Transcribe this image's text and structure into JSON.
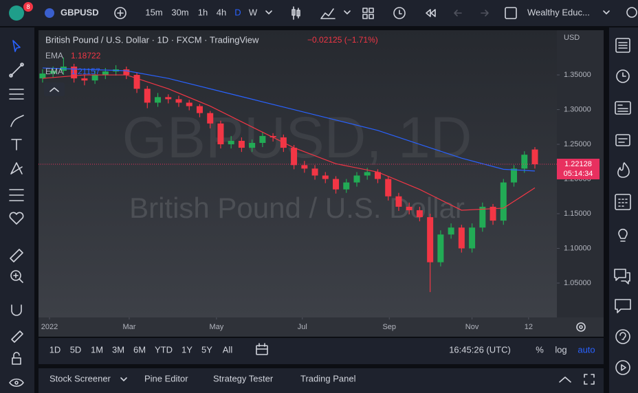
{
  "toolbar": {
    "symbol": "GBPUSD",
    "badge": "8",
    "intervals": [
      "15m",
      "30m",
      "1h",
      "4h",
      "D",
      "W"
    ],
    "active_interval": 4,
    "layout_name": "Wealthy Educ..."
  },
  "chart_data": {
    "type": "candlestick",
    "title": "British Pound / U.S. Dollar · 1D · FXCM · TradingView",
    "change": "−0.02125 (−1.71%)",
    "watermark": "GBPUSD, 1D",
    "watermark_subtitle": "British Pound / U.S. Dollar",
    "currency": "USD",
    "up_color": "#22ab55",
    "down_color": "#f23645",
    "x": [
      0,
      1,
      2,
      3,
      4,
      5,
      6,
      7,
      8,
      9,
      10,
      11,
      12,
      13,
      14,
      15,
      16,
      17,
      18,
      19,
      20,
      21,
      22,
      23,
      24,
      25,
      26,
      27,
      28,
      29,
      30,
      31,
      32,
      33,
      34,
      35,
      36,
      37,
      38,
      39,
      40,
      41,
      42,
      43,
      44,
      45,
      46,
      47
    ],
    "open": [
      1.345,
      1.352,
      1.356,
      1.362,
      1.345,
      1.342,
      1.35,
      1.355,
      1.358,
      1.35,
      1.33,
      1.31,
      1.318,
      1.315,
      1.31,
      1.305,
      1.295,
      1.28,
      1.25,
      1.255,
      1.245,
      1.252,
      1.262,
      1.26,
      1.245,
      1.22,
      1.215,
      1.205,
      1.2,
      1.185,
      1.195,
      1.205,
      1.21,
      1.2,
      1.175,
      1.16,
      1.155,
      1.145,
      1.08,
      1.12,
      1.13,
      1.1,
      1.13,
      1.16,
      1.14,
      1.195,
      1.215,
      1.24253
    ],
    "high": [
      1.358,
      1.362,
      1.375,
      1.366,
      1.35,
      1.356,
      1.36,
      1.364,
      1.362,
      1.354,
      1.334,
      1.324,
      1.322,
      1.32,
      1.314,
      1.308,
      1.298,
      1.284,
      1.262,
      1.26,
      1.257,
      1.268,
      1.266,
      1.264,
      1.249,
      1.226,
      1.22,
      1.21,
      1.204,
      1.2,
      1.21,
      1.216,
      1.214,
      1.204,
      1.18,
      1.166,
      1.16,
      1.15,
      1.126,
      1.136,
      1.134,
      1.136,
      1.166,
      1.164,
      1.2,
      1.22,
      1.24,
      1.246
    ],
    "low": [
      1.339,
      1.346,
      1.35,
      1.339,
      1.335,
      1.337,
      1.344,
      1.349,
      1.344,
      1.324,
      1.302,
      1.304,
      1.309,
      1.304,
      1.299,
      1.289,
      1.273,
      1.244,
      1.244,
      1.239,
      1.239,
      1.246,
      1.254,
      1.239,
      1.214,
      1.209,
      1.199,
      1.194,
      1.179,
      1.18,
      1.189,
      1.199,
      1.194,
      1.169,
      1.154,
      1.149,
      1.139,
      1.037,
      1.074,
      1.114,
      1.094,
      1.094,
      1.124,
      1.134,
      1.134,
      1.189,
      1.209,
      1.215
    ],
    "close": [
      1.352,
      1.356,
      1.362,
      1.345,
      1.342,
      1.35,
      1.355,
      1.358,
      1.35,
      1.33,
      1.31,
      1.318,
      1.315,
      1.31,
      1.305,
      1.295,
      1.28,
      1.25,
      1.255,
      1.245,
      1.252,
      1.262,
      1.26,
      1.245,
      1.22,
      1.215,
      1.205,
      1.2,
      1.185,
      1.195,
      1.205,
      1.21,
      1.2,
      1.175,
      1.16,
      1.155,
      1.145,
      1.08,
      1.12,
      1.13,
      1.1,
      1.13,
      1.16,
      1.14,
      1.195,
      1.215,
      1.235,
      1.22128
    ],
    "lines": [
      {
        "name": "EMA",
        "value": 1.18722,
        "color": "#f23645",
        "x": [
          0,
          4,
          8,
          12,
          16,
          20,
          24,
          28,
          32,
          36,
          40,
          44,
          47
        ],
        "values": [
          1.345,
          1.35,
          1.35,
          1.33,
          1.305,
          1.275,
          1.245,
          1.222,
          1.21,
          1.185,
          1.155,
          1.158,
          1.18722
        ]
      },
      {
        "name": "EMA",
        "value": 1.21157,
        "color": "#2962ff",
        "x": [
          0,
          8,
          12,
          16,
          20,
          24,
          28,
          32,
          36,
          40,
          44,
          47
        ],
        "values": [
          1.36,
          1.356,
          1.345,
          1.33,
          1.315,
          1.3,
          1.285,
          1.27,
          1.25,
          1.23,
          1.214,
          1.21157
        ]
      }
    ],
    "last_price": 1.22128,
    "countdown": "05:14:34",
    "last_price_color": "#e8305f",
    "xlim": [
      -0.39,
      49.1
    ],
    "ylim": [
      1.0005,
      1.4144
    ],
    "xticks": [
      {
        "value": 0.66,
        "label": "2022"
      },
      {
        "value": 8.27,
        "label": "Mar"
      },
      {
        "value": 16.6,
        "label": "May"
      },
      {
        "value": 24.8,
        "label": "Jul"
      },
      {
        "value": 33.1,
        "label": "Sep"
      },
      {
        "value": 41.0,
        "label": "Nov"
      },
      {
        "value": 46.4,
        "label": "12"
      }
    ],
    "yticks": [
      {
        "value": 1.05,
        "label": "1.05000"
      },
      {
        "value": 1.1,
        "label": "1.10000"
      },
      {
        "value": 1.15,
        "label": "1.15000"
      },
      {
        "value": 1.2,
        "label": "1.20000"
      },
      {
        "value": 1.25,
        "label": "1.25000"
      },
      {
        "value": 1.3,
        "label": "1.30000"
      },
      {
        "value": 1.35,
        "label": "1.35000"
      }
    ]
  },
  "range_bar": {
    "ranges": [
      "1D",
      "5D",
      "1M",
      "3M",
      "6M",
      "YTD",
      "1Y",
      "5Y",
      "All"
    ],
    "clock": "16:45:26 (UTC)",
    "percent": "%",
    "log": "log",
    "auto": "auto"
  },
  "bottom_panel": {
    "tabs": [
      "Stock Screener",
      "Pine Editor",
      "Strategy Tester",
      "Trading Panel"
    ]
  }
}
